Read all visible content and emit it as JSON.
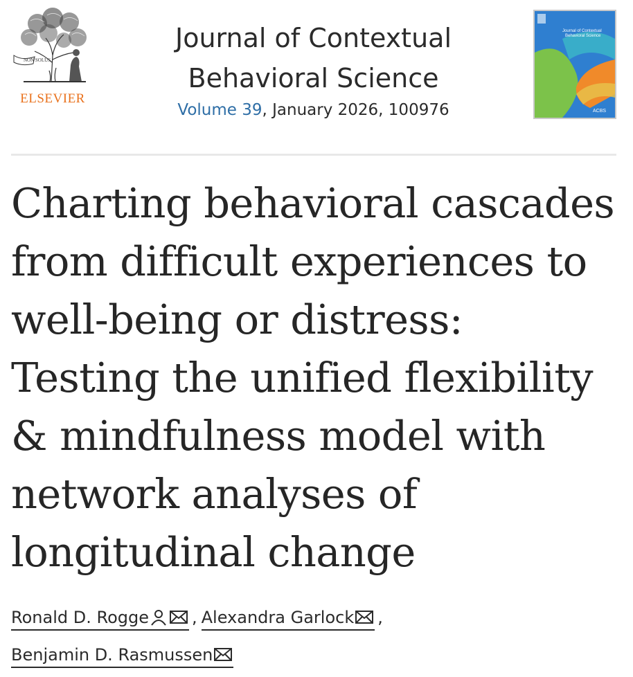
{
  "header": {
    "publisher": "ELSEVIER",
    "tree_motto": "NON SOLUS",
    "journal_title_line1": "Journal of Contextual",
    "journal_title_line2": "Behavioral Science",
    "volume_link": "Volume 39",
    "issue_rest": ", January 2026, 100976",
    "cover": {
      "title_line1": "Journal of Contextual",
      "title_line2": "Behavioral Science",
      "society": "ACBS",
      "colors": {
        "background": "#2f7fd0",
        "green": "#7cc24a",
        "orange": "#f08a2a",
        "teal": "#3bb3c8"
      }
    }
  },
  "article": {
    "title_lines": [
      "Charting behavioral cascades",
      "from difficult experiences to",
      "well-being or distress:",
      "Testing the unified flexibility",
      "& mindfulness model with",
      "network analyses of",
      "longitudinal change"
    ]
  },
  "authors": [
    {
      "name": "Ronald D. Rogge",
      "icons": [
        "person-icon",
        "mail-icon"
      ]
    },
    {
      "name": "Alexandra Garlock",
      "icons": [
        "mail-icon"
      ]
    },
    {
      "name": "Benjamin D. Rasmussen",
      "icons": [
        "mail-icon"
      ]
    }
  ],
  "separators": {
    "comma": ","
  },
  "colors": {
    "link_blue": "#2e6ea6",
    "elsevier_orange": "#e9711c",
    "text": "#262626"
  }
}
